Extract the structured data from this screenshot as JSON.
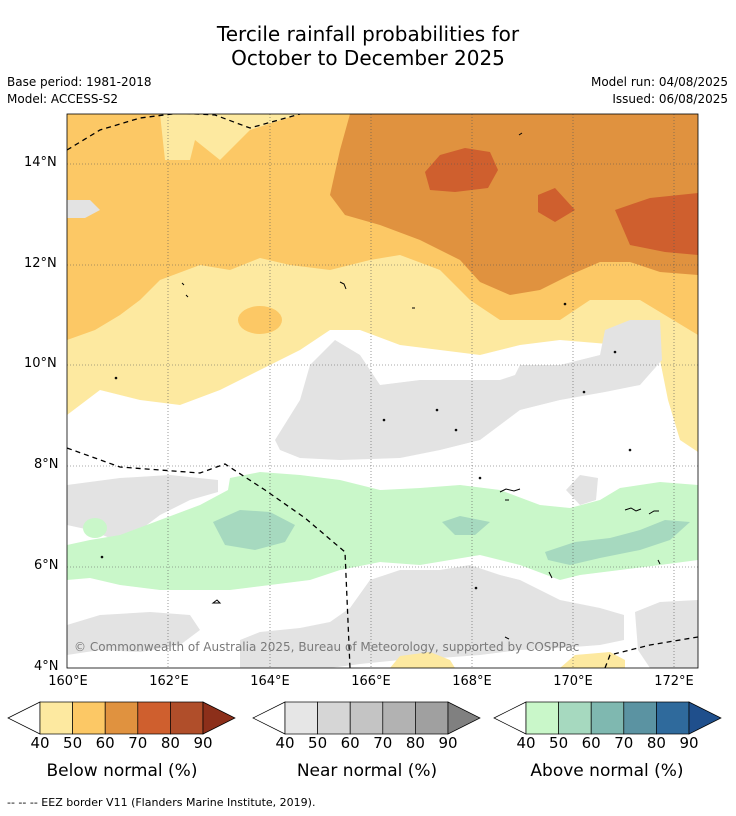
{
  "title": {
    "line1": "Tercile rainfall probabilities for",
    "line2": "October to December 2025"
  },
  "meta": {
    "base_period": "Base period: 1981-2018",
    "model": "Model: ACCESS-S2",
    "model_run": "Model run: 04/08/2025",
    "issued": "Issued: 06/08/2025"
  },
  "map": {
    "lat_labels": [
      "14°N",
      "12°N",
      "10°N",
      "8°N",
      "6°N",
      "4°N"
    ],
    "lon_labels": [
      "160°E",
      "162°E",
      "164°E",
      "166°E",
      "168°E",
      "170°E",
      "172°E"
    ],
    "copyright": "© Commonwealth of Australia 2025, Bureau of Meteorology, supported by COSPPac",
    "eez_border": "dashed black line"
  },
  "legends": [
    {
      "caption": "Below normal (%)",
      "ticks": [
        "40",
        "50",
        "60",
        "70",
        "80",
        "90"
      ],
      "colors": [
        "#fde9a0",
        "#fcc865",
        "#e0923f",
        "#cf5f2e",
        "#b04e2a",
        "#8c2f1a"
      ]
    },
    {
      "caption": "Near normal (%)",
      "ticks": [
        "40",
        "50",
        "60",
        "70",
        "80",
        "90"
      ],
      "colors": [
        "#e6e6e6",
        "#d6d6d6",
        "#c4c4c4",
        "#b2b2b2",
        "#a0a0a0",
        "#808080"
      ]
    },
    {
      "caption": "Above normal (%)",
      "ticks": [
        "40",
        "50",
        "60",
        "70",
        "80",
        "90"
      ],
      "colors": [
        "#c9f7c9",
        "#a6d9bf",
        "#7fb8b0",
        "#5b93a2",
        "#2f6a9c",
        "#1f4f8c"
      ]
    }
  ],
  "footnote": "--  --  -- EEZ border V11 (Flanders Marine Institute, 2019)."
}
